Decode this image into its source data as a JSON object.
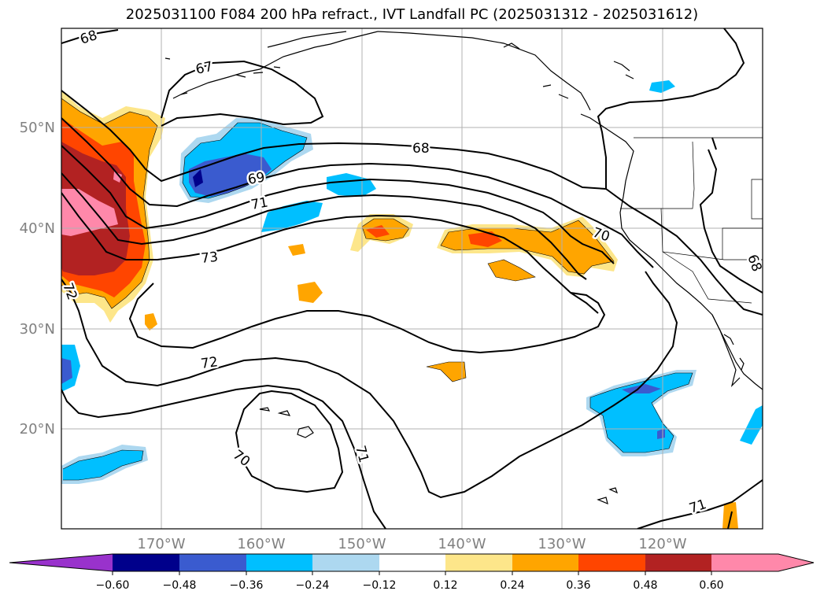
{
  "title": "2025031100 F084 200 hPa refract., IVT Landfall PC (2025031312 - 2025031612)",
  "map": {
    "lat_labels": [
      "50°N",
      "40°N",
      "30°N",
      "20°N"
    ],
    "lon_labels": [
      "170°W",
      "160°W",
      "150°W",
      "140°W",
      "130°W",
      "120°W"
    ],
    "contour_labels": [
      "68",
      "67",
      "68",
      "69",
      "71",
      "73",
      "72",
      "72",
      "70",
      "71",
      "70",
      "71",
      "68"
    ],
    "colors": {
      "neg_extreme": "#9932cc",
      "neg_060": "#00008b",
      "neg_048": "#3a5bcf",
      "neg_036": "#00bfff",
      "neg_024": "#add8f0",
      "neutral": "#ffffff",
      "pos_012": "#fde68a",
      "pos_024": "#ffa500",
      "pos_036": "#ff4500",
      "pos_048": "#b22222",
      "pos_060": "#ff88aa"
    }
  },
  "colorbar": {
    "ticks": [
      "−0.60",
      "−0.48",
      "−0.36",
      "−0.24",
      "−0.12",
      "0.12",
      "0.24",
      "0.36",
      "0.48",
      "0.60"
    ]
  }
}
